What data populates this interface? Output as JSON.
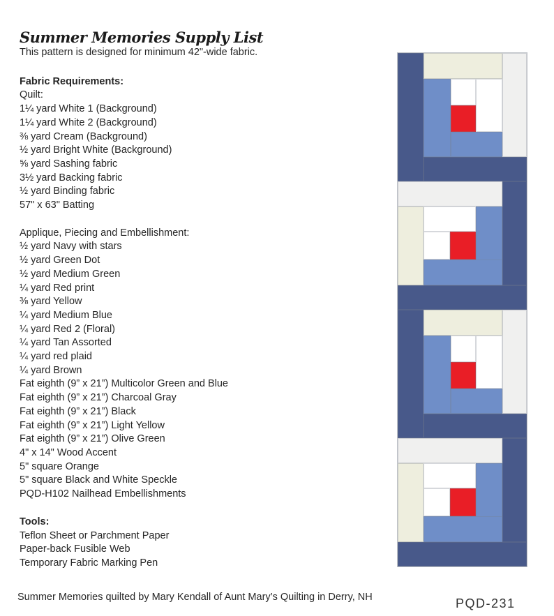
{
  "header": {
    "title": "Summer Memories Supply List",
    "subtitle": "This pattern is designed for minimum 42\"-wide fabric."
  },
  "sections": [
    {
      "heading": "Fabric Requirements:",
      "items": [
        "Quilt:",
        "1¼ yard White 1 (Background)",
        "1¼ yard White 2 (Background)",
        "⅜ yard Cream (Background)",
        "½ yard Bright White (Background)",
        "⅝ yard Sashing fabric",
        "3½ yard Backing fabric",
        "½ yard Binding fabric",
        "57\" x 63\" Batting"
      ]
    },
    {
      "heading": "Applique, Piecing and Embellishment:",
      "items": [
        "½ yard Navy with stars",
        "½ yard Green Dot",
        "½ yard Medium Green",
        "¼ yard Red print",
        "⅜ yard Yellow",
        "¼ yard Medium Blue",
        "¼ yard Red 2 (Floral)",
        "¼ yard Tan Assorted",
        "¼ yard red plaid",
        "¼ yard Brown",
        "Fat eighth (9” x 21”) Multicolor Green and Blue",
        "Fat eighth (9” x 21”) Charcoal Gray",
        "Fat eighth (9” x 21”) Black",
        "Fat eighth (9” x 21”) Light Yellow",
        "Fat eighth (9” x 21”) Olive Green",
        "4\" x 14\" Wood Accent",
        "5\" square Orange",
        "5\" square Black and White Speckle",
        "PQD-H102 Nailhead Embellishments"
      ]
    },
    {
      "heading": "Tools:",
      "items": [
        "Teflon Sheet or Parchment Paper",
        "Paper-back Fusible Web",
        "Temporary Fabric Marking Pen"
      ]
    }
  ],
  "footer": {
    "credit": "Summer Memories quilted by Mary Kendall of Aunt Mary’s Quilting in Derry, NH",
    "code": "PQD-231"
  },
  "quilt_panel": {
    "blocks": [
      "A",
      "B",
      "A",
      "B"
    ],
    "colors": {
      "navy": "#48598a",
      "cornflower": "#6f8ec8",
      "cream": "#eeeede",
      "gray": "#f0f0ef",
      "red": "#e91e26",
      "white": "#ffffff"
    }
  }
}
